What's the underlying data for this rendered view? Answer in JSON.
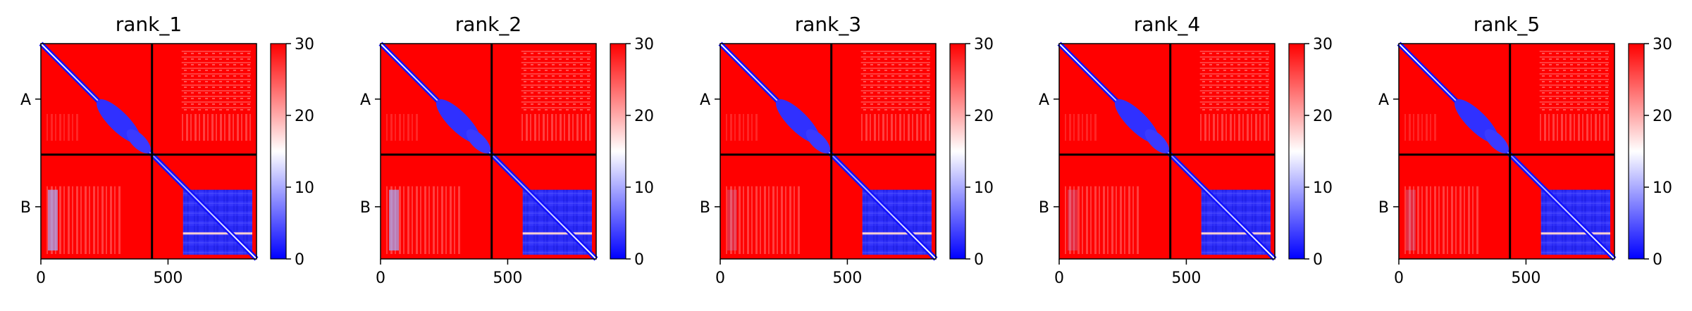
{
  "chart_data": {
    "type": "heatmap",
    "panels": [
      {
        "title": "rank_1"
      },
      {
        "title": "rank_2"
      },
      {
        "title": "rank_3"
      },
      {
        "title": "rank_4"
      },
      {
        "title": "rank_5"
      }
    ],
    "chains": [
      "A",
      "B"
    ],
    "chain_boundary": 437,
    "x_range": [
      0,
      848
    ],
    "x_ticks": [
      {
        "value": 0,
        "label": "0"
      },
      {
        "value": 500,
        "label": "500"
      }
    ],
    "colorbar": {
      "range": [
        0,
        30
      ],
      "ticks": [
        {
          "value": 0,
          "label": "0"
        },
        {
          "value": 10,
          "label": "10"
        },
        {
          "value": 20,
          "label": "20"
        },
        {
          "value": 30,
          "label": "30"
        }
      ],
      "colors": [
        "#0000ff",
        "#ffffff",
        "#ff0000"
      ]
    },
    "grid": false
  }
}
